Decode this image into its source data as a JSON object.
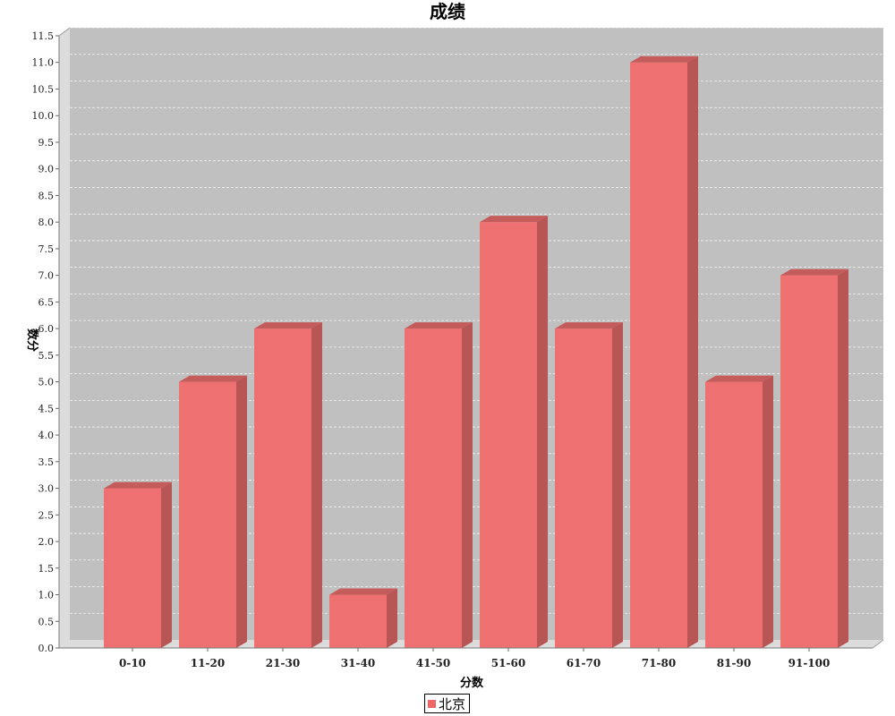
{
  "chart_data": {
    "type": "bar",
    "title": "成绩",
    "xlabel": "分数",
    "ylabel": "数分",
    "categories": [
      "0-10",
      "11-20",
      "21-30",
      "31-40",
      "41-50",
      "51-60",
      "61-70",
      "71-80",
      "81-90",
      "91-100"
    ],
    "series": [
      {
        "name": "北京",
        "values": [
          3,
          5,
          6,
          1,
          6,
          8,
          6,
          11,
          5,
          7
        ]
      }
    ],
    "ylim": [
      0,
      11.5
    ],
    "ytick_step": 0.5,
    "ytick_labels": [
      "0.0",
      "0.5",
      "1.0",
      "1.5",
      "2.0",
      "2.5",
      "3.0",
      "3.5",
      "4.0",
      "4.5",
      "5.0",
      "5.5",
      "6.0",
      "6.5",
      "7.0",
      "7.5",
      "8.0",
      "8.5",
      "9.0",
      "9.5",
      "10.0",
      "10.5",
      "11.0",
      "11.5"
    ],
    "grid": true,
    "legend_position": "bottom-center",
    "three_d": true
  },
  "colors": {
    "bar_face": "#ee7070",
    "bar_top": "#c45c5c",
    "bar_side": "#b85555",
    "plot_background": "#c0c0c0",
    "plot_wall": "#dcdcdc",
    "gridline": "#f2f2f2",
    "legend_swatch": "#ee6666"
  }
}
